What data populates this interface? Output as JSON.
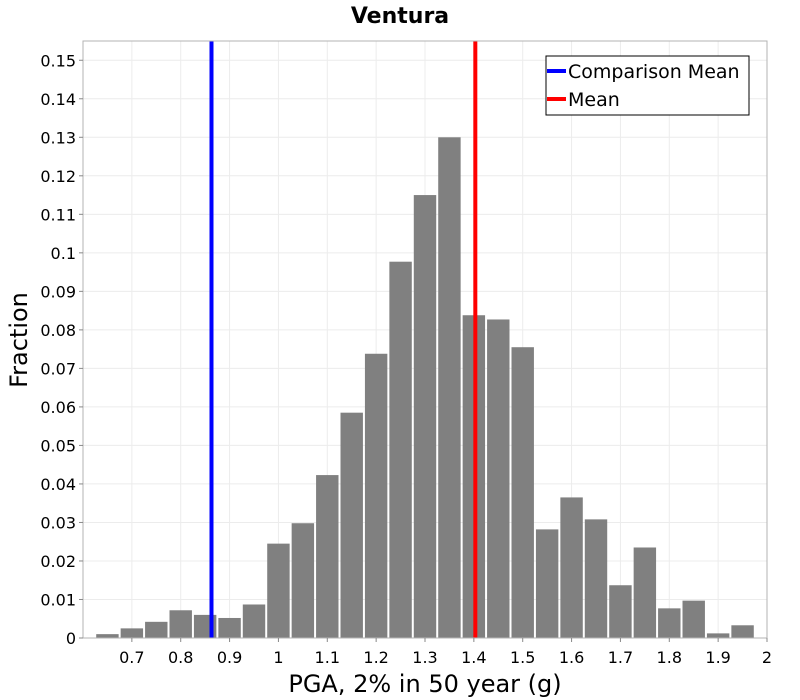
{
  "chart_data": {
    "type": "bar",
    "title": "Ventura",
    "xlabel": "PGA, 2% in 50 year (g)",
    "ylabel": "Fraction",
    "xlim": [
      0.6,
      2.0
    ],
    "ylim": [
      0,
      0.155
    ],
    "bin_width": 0.05,
    "x_ticks": [
      0.7,
      0.8,
      0.9,
      1,
      1.1,
      1.2,
      1.3,
      1.4,
      1.5,
      1.6,
      1.7,
      1.8,
      1.9,
      2
    ],
    "x_tick_labels": [
      "0.7",
      "0.8",
      "0.9",
      "1",
      "1.1",
      "1.2",
      "1.3",
      "1.4",
      "1.5",
      "1.6",
      "1.7",
      "1.8",
      "1.9",
      "2"
    ],
    "y_ticks": [
      0,
      0.01,
      0.02,
      0.03,
      0.04,
      0.05,
      0.06,
      0.07,
      0.08,
      0.09,
      0.1,
      0.11,
      0.12,
      0.13,
      0.14,
      0.15
    ],
    "y_tick_labels": [
      "0",
      "0.01",
      "0.02",
      "0.03",
      "0.04",
      "0.05",
      "0.06",
      "0.07",
      "0.08",
      "0.09",
      "0.1",
      "0.11",
      "0.12",
      "0.13",
      "0.14",
      "0.15"
    ],
    "bins": [
      {
        "x": 0.65,
        "value": 0.001
      },
      {
        "x": 0.7,
        "value": 0.0025
      },
      {
        "x": 0.75,
        "value": 0.0042
      },
      {
        "x": 0.8,
        "value": 0.0072
      },
      {
        "x": 0.85,
        "value": 0.006
      },
      {
        "x": 0.9,
        "value": 0.0052
      },
      {
        "x": 0.95,
        "value": 0.0087
      },
      {
        "x": 1.0,
        "value": 0.0245
      },
      {
        "x": 1.05,
        "value": 0.0298
      },
      {
        "x": 1.1,
        "value": 0.0423
      },
      {
        "x": 1.15,
        "value": 0.0585
      },
      {
        "x": 1.2,
        "value": 0.0738
      },
      {
        "x": 1.25,
        "value": 0.0977
      },
      {
        "x": 1.3,
        "value": 0.115
      },
      {
        "x": 1.35,
        "value": 0.13
      },
      {
        "x": 1.4,
        "value": 0.0838
      },
      {
        "x": 1.45,
        "value": 0.0827
      },
      {
        "x": 1.5,
        "value": 0.0755
      },
      {
        "x": 1.55,
        "value": 0.0282
      },
      {
        "x": 1.6,
        "value": 0.0365
      },
      {
        "x": 1.65,
        "value": 0.0308
      },
      {
        "x": 1.7,
        "value": 0.0137
      },
      {
        "x": 1.75,
        "value": 0.0235
      },
      {
        "x": 1.8,
        "value": 0.0077
      },
      {
        "x": 1.85,
        "value": 0.0097
      },
      {
        "x": 1.9,
        "value": 0.0012
      },
      {
        "x": 1.95,
        "value": 0.0033
      }
    ],
    "bar_color": "#808080",
    "grid": true,
    "reference_lines": [
      {
        "name": "Comparison Mean",
        "x": 0.863,
        "color": "#0000ff"
      },
      {
        "name": "Mean",
        "x": 1.403,
        "color": "#ff0000"
      }
    ],
    "legend": {
      "placement": "top-right",
      "entries": [
        {
          "label": "Comparison Mean",
          "color": "#0000ff"
        },
        {
          "label": "Mean",
          "color": "#ff0000"
        }
      ]
    }
  }
}
